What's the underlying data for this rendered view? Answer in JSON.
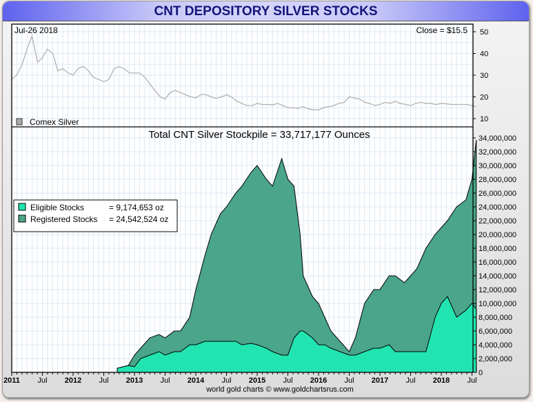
{
  "title": "CNT DEPOSITORY SILVER STOCKS",
  "chart_data": [
    {
      "type": "line",
      "name": "Comex Silver price",
      "date_label": "Jul-26  2018",
      "close_label": "Close = $15.5",
      "legend": "Comex Silver",
      "ylim": [
        7,
        53
      ],
      "yticks": [
        10,
        20,
        30,
        40,
        50
      ],
      "x": [
        2011.0,
        2011.08,
        2011.17,
        2011.25,
        2011.33,
        2011.42,
        2011.5,
        2011.58,
        2011.67,
        2011.75,
        2011.83,
        2011.92,
        2012.0,
        2012.08,
        2012.17,
        2012.25,
        2012.33,
        2012.42,
        2012.5,
        2012.58,
        2012.67,
        2012.75,
        2012.83,
        2012.92,
        2013.0,
        2013.08,
        2013.17,
        2013.25,
        2013.33,
        2013.42,
        2013.5,
        2013.58,
        2013.67,
        2013.75,
        2013.83,
        2013.92,
        2014.0,
        2014.08,
        2014.17,
        2014.25,
        2014.33,
        2014.42,
        2014.5,
        2014.58,
        2014.67,
        2014.75,
        2014.83,
        2014.92,
        2015.0,
        2015.08,
        2015.17,
        2015.25,
        2015.33,
        2015.42,
        2015.5,
        2015.58,
        2015.67,
        2015.75,
        2015.83,
        2015.92,
        2016.0,
        2016.08,
        2016.17,
        2016.25,
        2016.33,
        2016.42,
        2016.5,
        2016.58,
        2016.67,
        2016.75,
        2016.83,
        2016.92,
        2017.0,
        2017.08,
        2017.17,
        2017.25,
        2017.33,
        2017.42,
        2017.5,
        2017.58,
        2017.67,
        2017.75,
        2017.83,
        2017.92,
        2018.0,
        2018.08,
        2018.17,
        2018.25,
        2018.33,
        2018.42,
        2018.57
      ],
      "y": [
        28,
        30,
        35,
        42,
        48,
        36,
        38,
        42,
        40,
        32,
        33,
        31,
        30,
        33,
        34,
        32,
        29,
        28,
        27,
        28,
        33,
        34,
        33,
        31,
        31,
        31,
        29,
        26,
        23,
        20,
        19,
        22,
        23,
        22,
        21,
        20,
        19.5,
        21,
        21,
        20,
        19.3,
        20,
        21,
        20,
        18,
        17,
        16,
        16,
        17,
        16.5,
        16.5,
        16.3,
        17,
        16,
        15,
        15,
        14.7,
        15.5,
        14.5,
        14,
        14,
        15,
        15.5,
        16,
        17,
        17.5,
        20,
        19.5,
        19,
        17.5,
        17,
        16,
        16.5,
        17.5,
        17,
        18,
        17,
        16.5,
        16,
        17,
        17.5,
        17,
        17,
        16.5,
        17,
        16.8,
        16.5,
        16.5,
        16.5,
        16.5,
        15.5
      ]
    },
    {
      "type": "area",
      "title": "Total CNT Silver Stockpile = 33,717,177 Ounces",
      "ylim": [
        0,
        34000000
      ],
      "yticks": [
        "0",
        "2,000,000",
        "4,000,000",
        "6,000,000",
        "8,000,000",
        "10,000,000",
        "12,000,000",
        "14,000,000",
        "16,000,000",
        "18,000,000",
        "20,000,000",
        "22,000,000",
        "24,000,000",
        "26,000,000",
        "28,000,000",
        "30,000,000",
        "32,000,000",
        "34,000,000"
      ],
      "xticks": [
        "2011",
        "Jul",
        "2012",
        "Jul",
        "2013",
        "Jul",
        "2014",
        "Jul",
        "2015",
        "Jul",
        "2016",
        "Jul",
        "2017",
        "Jul",
        "2018",
        "Jul"
      ],
      "legend": [
        {
          "label": "Eligible Stocks",
          "value": "= 9,174,653 oz",
          "color": "#22e4b0"
        },
        {
          "label": "Registered Stocks",
          "value": "= 24,542,524 oz",
          "color": "#4aa58a"
        }
      ],
      "x": [
        2012.72,
        2012.9,
        2013.0,
        2013.1,
        2013.25,
        2013.4,
        2013.5,
        2013.65,
        2013.75,
        2013.9,
        2014.0,
        2014.15,
        2014.25,
        2014.4,
        2014.5,
        2014.65,
        2014.75,
        2014.9,
        2015.0,
        2015.15,
        2015.25,
        2015.4,
        2015.5,
        2015.6,
        2015.7,
        2015.75,
        2015.9,
        2016.0,
        2016.1,
        2016.2,
        2016.35,
        2016.5,
        2016.6,
        2016.75,
        2016.9,
        2017.0,
        2017.15,
        2017.25,
        2017.4,
        2017.5,
        2017.6,
        2017.75,
        2017.9,
        2018.0,
        2018.1,
        2018.25,
        2018.4,
        2018.5,
        2018.57
      ],
      "series": [
        {
          "name": "Total",
          "values": [
            0.6,
            1,
            2.5,
            3.5,
            5,
            5.5,
            5,
            6,
            6,
            8,
            12,
            17,
            20,
            23,
            24,
            26,
            27,
            29,
            30,
            28,
            27,
            31,
            28,
            27,
            20,
            14,
            11,
            10,
            8,
            6,
            4.5,
            3,
            5,
            10,
            12,
            12,
            14,
            14,
            13,
            14,
            15,
            18,
            20,
            21,
            22,
            24,
            25,
            28,
            33.7
          ]
        },
        {
          "name": "Eligible",
          "values": [
            0.6,
            1,
            0.8,
            2,
            2.5,
            3,
            2.5,
            3,
            3,
            4,
            4,
            4.5,
            4.5,
            4.5,
            4.5,
            4.5,
            4,
            4.2,
            4,
            3.5,
            3,
            2.5,
            2.5,
            5,
            6,
            6,
            5,
            4,
            4,
            3.5,
            3,
            2.5,
            2.5,
            3,
            3.5,
            3.5,
            4,
            3,
            3,
            3,
            3,
            3,
            8,
            10,
            11,
            8,
            9,
            10,
            9.17
          ]
        }
      ]
    }
  ],
  "footer": "world gold charts © www.goldchartsrus.com"
}
